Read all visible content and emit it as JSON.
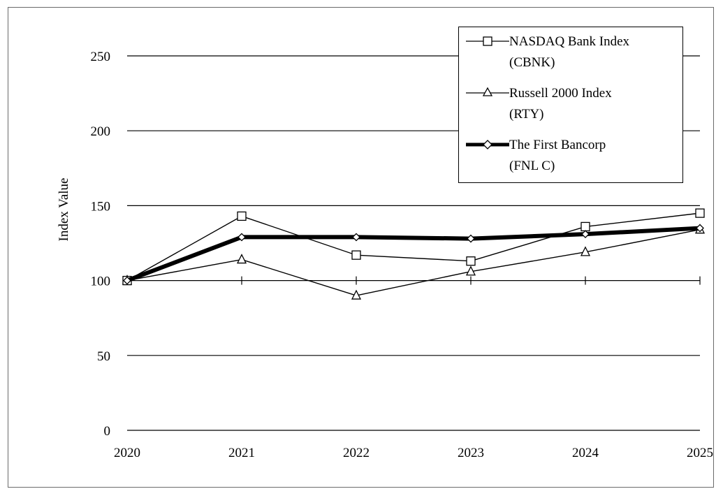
{
  "chart_data": {
    "type": "line",
    "title": "",
    "xlabel": "",
    "ylabel": "Index Value",
    "categories": [
      "2020",
      "2021",
      "2022",
      "2023",
      "2024",
      "2025"
    ],
    "ylim": [
      0,
      250
    ],
    "yticks": [
      "0",
      "50",
      "100",
      "150",
      "200",
      "250"
    ],
    "grid": "horizontal",
    "legend_position": "top-right",
    "series": [
      {
        "name": "NASDAQ Bank Index (CBNK)",
        "label_line1": "NASDAQ Bank Index",
        "label_line2": "(CBNK)",
        "marker": "square",
        "line_width": "thin",
        "color": "#000000",
        "values": [
          100,
          143,
          117,
          113,
          136,
          145
        ]
      },
      {
        "name": "Russell 2000 Index (RTY)",
        "label_line1": "Russell 2000 Index",
        "label_line2": "(RTY)",
        "marker": "triangle",
        "line_width": "thin",
        "color": "#000000",
        "values": [
          100,
          114,
          90,
          106,
          119,
          134
        ]
      },
      {
        "name": "The First Bancorp (FNLC)",
        "label_line1": "The First Bancorp",
        "label_line2": "(FNL C)",
        "marker": "diamond",
        "line_width": "thick",
        "color": "#000000",
        "values": [
          100,
          129,
          129,
          128,
          131,
          135
        ]
      }
    ]
  }
}
